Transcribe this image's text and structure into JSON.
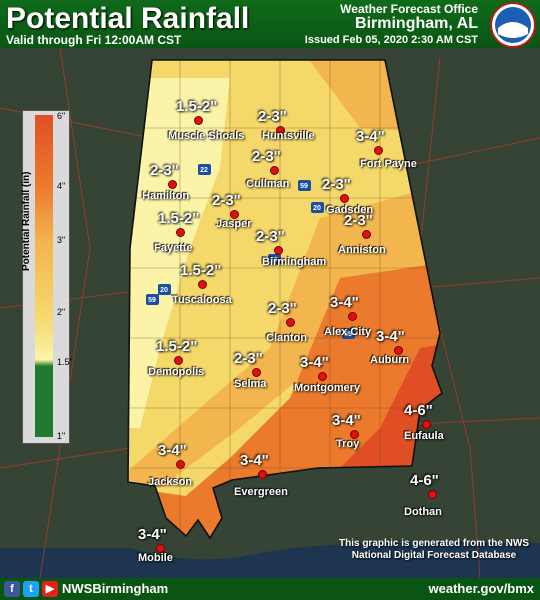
{
  "header": {
    "title": "Potential Rainfall",
    "valid": "Valid through Fri 12:00AM CST",
    "office": "Weather Forecast Office",
    "city": "Birmingham, AL",
    "issued": "Issued Feb 05, 2020 2:30 AM CST"
  },
  "legend": {
    "label": "Potential Rainfall (in)",
    "ticks": [
      "6\"",
      "4\"",
      "3\"",
      "2\"",
      "1.5\"",
      "1\""
    ],
    "colors": {
      "green": "#1f7a2e",
      "light_yellow": "#fbf4a8",
      "yellow": "#f5d86a",
      "light_orange": "#f3b64e",
      "orange": "#ec7a2c",
      "dark_orange": "#e04f24"
    }
  },
  "forecasts": [
    {
      "value": "1.5-2\"",
      "town": "Muscle Shoals"
    },
    {
      "value": "2-3\"",
      "town": "Huntsville"
    },
    {
      "value": "3-4\"",
      "town": "Fort Payne"
    },
    {
      "value": "2-3\"",
      "town": "Hamilton"
    },
    {
      "value": "2-3\"",
      "town": "Cullman"
    },
    {
      "value": "2-3\"",
      "town": "Gadsden"
    },
    {
      "value": "2-3\"",
      "town": "Jasper"
    },
    {
      "value": "1.5-2\"",
      "town": "Fayette"
    },
    {
      "value": "2-3\"",
      "town": "Birmingham"
    },
    {
      "value": "2-3\"",
      "town": "Anniston"
    },
    {
      "value": "1.5-2\"",
      "town": "Tuscaloosa"
    },
    {
      "value": "2-3\"",
      "town": "Clanton"
    },
    {
      "value": "3-4\"",
      "town": "Alex City"
    },
    {
      "value": "3-4\"",
      "town": "Auburn"
    },
    {
      "value": "1.5-2\"",
      "town": "Demopolis"
    },
    {
      "value": "2-3\"",
      "town": "Selma"
    },
    {
      "value": "3-4\"",
      "town": "Montgomery"
    },
    {
      "value": "4-6\"",
      "town": "Eufaula"
    },
    {
      "value": "3-4\"",
      "town": "Troy"
    },
    {
      "value": "3-4\"",
      "town": "Jackson"
    },
    {
      "value": "3-4\"",
      "town": "Evergreen"
    },
    {
      "value": "4-6\"",
      "town": "Dothan"
    },
    {
      "value": "3-4\"",
      "town": "Mobile"
    }
  ],
  "highways": [
    "22",
    "59",
    "20",
    "65",
    "59",
    "20",
    "85"
  ],
  "note": "This graphic is generated from the NWS National Digital Forecast Database",
  "footer": {
    "handle": "NWSBirmingham",
    "website": "weather.gov/bmx",
    "social_icons": [
      "facebook-icon",
      "twitter-icon",
      "youtube-icon"
    ]
  }
}
